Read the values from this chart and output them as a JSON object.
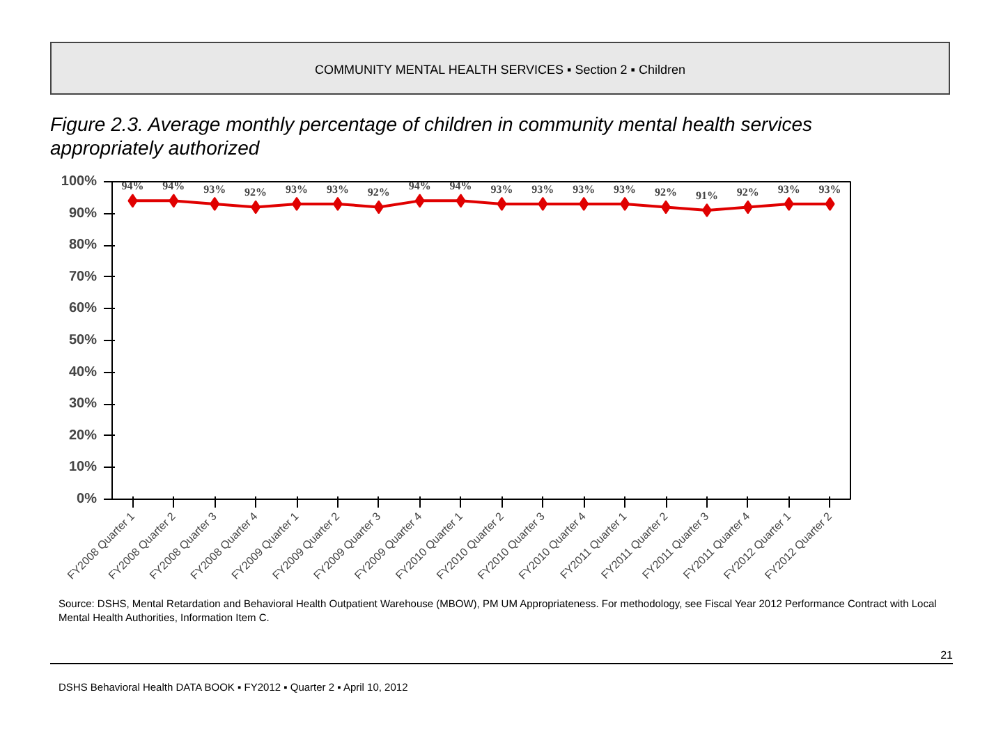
{
  "chart_data": {
    "type": "line",
    "subtitle": "COMMUNITY MENTAL HEALTH SERVICES ▪ Section 2 ▪ Children",
    "title": "Figure 2.3. Average monthly percentage of children in community mental health services appropriately authorized",
    "categories": [
      "FY2008 Quarter 1",
      "FY2008 Quarter 2",
      "FY2008 Quarter 3",
      "FY2008 Quarter 4",
      "FY2009 Quarter 1",
      "FY2009 Quarter 2",
      "FY2009 Quarter 3",
      "FY2009 Quarter 4",
      "FY2010 Quarter 1",
      "FY2010 Quarter 2",
      "FY2010 Quarter 3",
      "FY2010 Quarter 4",
      "FY2011 Quarter 1",
      "FY2011 Quarter 2",
      "FY2011 Quarter 3",
      "FY2011 Quarter 4",
      "FY2012 Quarter 1",
      "FY2012 Quarter 2"
    ],
    "series": [
      {
        "color": "#e00000",
        "values": [
          94,
          94,
          93,
          92,
          93,
          93,
          92,
          94,
          94,
          93,
          93,
          93,
          93,
          92,
          91,
          92,
          93,
          93
        ],
        "value_labels": [
          "94%",
          "94%",
          "93%",
          "92%",
          "93%",
          "93%",
          "92%",
          "94%",
          "94%",
          "93%",
          "93%",
          "93%",
          "93%",
          "92%",
          "91%",
          "92%",
          "93%",
          "93%"
        ]
      }
    ],
    "ylim": [
      0,
      100
    ],
    "yticks": [
      {
        "value": 0,
        "label": "0%"
      },
      {
        "value": 10,
        "label": "10%"
      },
      {
        "value": 20,
        "label": "20%"
      },
      {
        "value": 30,
        "label": "30%"
      },
      {
        "value": 40,
        "label": "40%"
      },
      {
        "value": 50,
        "label": "50%"
      },
      {
        "value": 60,
        "label": "60%"
      },
      {
        "value": 70,
        "label": "70%"
      },
      {
        "value": 80,
        "label": "80%"
      },
      {
        "value": 90,
        "label": "90%"
      },
      {
        "value": 100,
        "label": "100%"
      }
    ],
    "marker": "diamond",
    "line_style": "solid",
    "grid": false,
    "annotations": [
      "Source: DSHS, Mental Retardation and Behavioral Health Outpatient Warehouse (MBOW), PM UM Appropriateness. For methodology, see Fiscal Year 2012 Performance Contract with Local Mental Health Authorities, Information Item C.",
      "21",
      "DSHS Behavioral Health DATA BOOK ▪ FY2012 ▪ Quarter 2 ▪ April 10, 2012"
    ]
  }
}
